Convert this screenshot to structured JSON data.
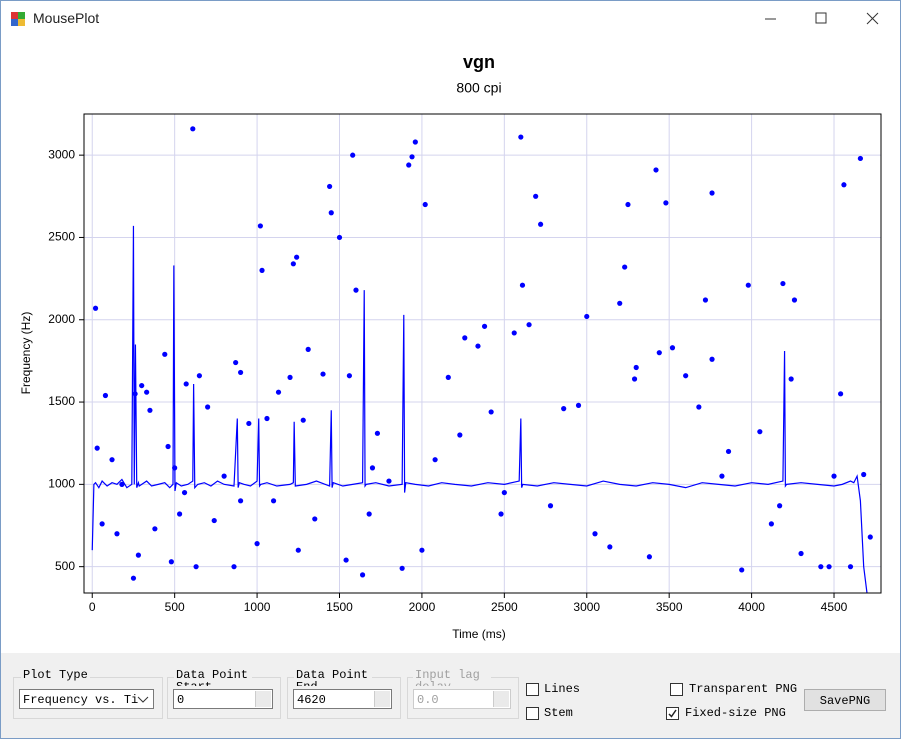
{
  "window": {
    "title": "MousePlot"
  },
  "chart_data": {
    "type": "scatter",
    "title": "vgn",
    "subtitle": "800 cpi",
    "x_label": "Time (ms)",
    "y_label": "Frequency (Hz)",
    "xlim": [
      -50,
      4785
    ],
    "ylim": [
      340,
      3250
    ],
    "xticks": [
      0,
      500,
      1000,
      1500,
      2000,
      2500,
      3000,
      3500,
      4000,
      4500
    ],
    "yticks": [
      500,
      1000,
      1500,
      2000,
      2500,
      3000
    ],
    "grid": true,
    "series": [
      {
        "type": "line",
        "color": "#0000ff",
        "x": [
          0,
          10,
          20,
          40,
          60,
          90,
          120,
          150,
          180,
          210,
          240,
          250,
          255,
          262,
          270,
          280,
          285,
          300,
          330,
          360,
          400,
          440,
          470,
          490,
          495,
          502,
          510,
          540,
          580,
          610,
          615,
          622,
          640,
          680,
          720,
          760,
          800,
          860,
          880,
          885,
          892,
          920,
          960,
          1000,
          1010,
          1015,
          1022,
          1060,
          1120,
          1200,
          1220,
          1225,
          1232,
          1300,
          1360,
          1440,
          1450,
          1455,
          1462,
          1520,
          1580,
          1640,
          1650,
          1655,
          1662,
          1720,
          1800,
          1880,
          1890,
          1895,
          1902,
          1960,
          2040,
          2120,
          2200,
          2300,
          2400,
          2500,
          2590,
          2600,
          2605,
          2612,
          2700,
          2800,
          2900,
          3000,
          3100,
          3200,
          3300,
          3400,
          3500,
          3600,
          3700,
          3800,
          3900,
          4000,
          4100,
          4190,
          4200,
          4205,
          4212,
          4300,
          4400,
          4500,
          4550,
          4600,
          4620,
          4640,
          4660,
          4680,
          4700
        ],
        "values": [
          600,
          1000,
          1010,
          980,
          1020,
          990,
          1010,
          1000,
          1030,
          980,
          1000,
          2570,
          1000,
          1850,
          980,
          1010,
          990,
          1000,
          1020,
          990,
          1000,
          1010,
          980,
          1000,
          2330,
          960,
          1010,
          990,
          1000,
          1020,
          1610,
          980,
          1000,
          1010,
          990,
          1020,
          1000,
          990,
          1400,
          980,
          1010,
          1000,
          990,
          1020,
          1400,
          990,
          1000,
          1010,
          990,
          1000,
          1010,
          1380,
          990,
          1000,
          1020,
          990,
          1450,
          980,
          1010,
          990,
          1000,
          1010,
          2180,
          990,
          1000,
          1010,
          990,
          1000,
          2030,
          950,
          1010,
          1000,
          990,
          1010,
          1000,
          990,
          1010,
          1000,
          1020,
          1400,
          980,
          1000,
          990,
          1010,
          1000,
          990,
          1020,
          1000,
          990,
          1010,
          1000,
          980,
          1010,
          1000,
          990,
          1010,
          1000,
          1020,
          1810,
          990,
          1000,
          1010,
          1000,
          990,
          1000,
          1020,
          1010,
          1050,
          900,
          500,
          340
        ]
      },
      {
        "type": "scatter",
        "color": "#0000ff",
        "x": [
          20,
          30,
          80,
          60,
          120,
          150,
          180,
          250,
          260,
          280,
          300,
          330,
          350,
          380,
          440,
          460,
          480,
          500,
          530,
          560,
          610,
          630,
          650,
          570,
          700,
          740,
          800,
          860,
          870,
          900,
          950,
          1000,
          1020,
          1030,
          1060,
          1100,
          1130,
          1200,
          1220,
          1240,
          1250,
          1280,
          1310,
          1350,
          1400,
          1440,
          1450,
          1500,
          1540,
          1560,
          1580,
          1600,
          1640,
          1680,
          1730,
          1800,
          1880,
          1920,
          1940,
          1960,
          2000,
          2020,
          2080,
          2160,
          2230,
          2260,
          2340,
          2380,
          2420,
          2480,
          2560,
          2600,
          2610,
          2650,
          2690,
          2720,
          2780,
          2860,
          2950,
          3000,
          3050,
          3140,
          3200,
          3230,
          3250,
          3290,
          3300,
          3380,
          3420,
          3440,
          3480,
          3520,
          3600,
          3680,
          3720,
          3760,
          3760,
          3860,
          3940,
          3980,
          4050,
          4120,
          4170,
          4190,
          4240,
          4260,
          4300,
          4420,
          4470,
          4500,
          4540,
          4560,
          4600,
          4660,
          4720,
          4680,
          3820,
          2500,
          900,
          1700
        ],
        "values": [
          2070,
          1220,
          1540,
          760,
          1150,
          700,
          1000,
          430,
          1550,
          570,
          1600,
          1560,
          1450,
          730,
          1790,
          1230,
          530,
          1100,
          820,
          950,
          3160,
          500,
          1660,
          1610,
          1470,
          780,
          1050,
          500,
          1740,
          1680,
          1370,
          640,
          2570,
          2300,
          1400,
          900,
          1560,
          1650,
          2340,
          2380,
          600,
          1390,
          1820,
          790,
          1670,
          2810,
          2650,
          2500,
          540,
          1660,
          3000,
          2180,
          450,
          820,
          1310,
          1020,
          490,
          2940,
          2990,
          3080,
          600,
          2700,
          1150,
          1650,
          1300,
          1890,
          1840,
          1960,
          1440,
          820,
          1920,
          3110,
          2210,
          1970,
          2750,
          2580,
          870,
          1460,
          1480,
          2020,
          700,
          620,
          2100,
          2320,
          2700,
          1640,
          1710,
          560,
          2910,
          1800,
          2710,
          1830,
          1660,
          1470,
          2120,
          2770,
          1760,
          1200,
          480,
          2210,
          1320,
          760,
          870,
          2220,
          1640,
          2120,
          580,
          500,
          500,
          1050,
          1550,
          2820,
          500,
          2980,
          680,
          1060,
          1050,
          950,
          900,
          1100
        ]
      }
    ]
  },
  "controls": {
    "plot_type": {
      "label": "Plot Type",
      "value": "Frequency vs. Ti"
    },
    "start": {
      "label": "Data Point Start",
      "value": "0"
    },
    "end": {
      "label": "Data Point End",
      "value": "4620"
    },
    "lag": {
      "label": "Input lag delay",
      "value": "0.0"
    },
    "lines": {
      "label": "Lines",
      "checked": false
    },
    "stem": {
      "label": "Stem",
      "checked": false
    },
    "transparent": {
      "label": "Transparent PNG",
      "checked": false
    },
    "fixed": {
      "label": "Fixed-size PNG",
      "checked": true
    },
    "save": {
      "label": "SavePNG"
    }
  }
}
